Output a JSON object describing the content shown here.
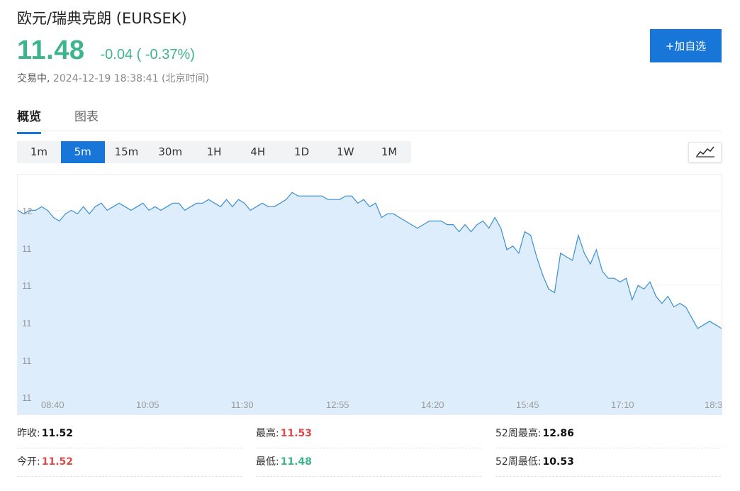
{
  "header": {
    "title": "欧元/瑞典克朗 (EURSEK)",
    "price": "11.48",
    "change": "-0.04 ( -0.37%)",
    "status": "交易中,",
    "timestamp": "2024-12-19 18:38:41 (北京时间)",
    "add_button": "+加自选"
  },
  "tabs": [
    {
      "label": "概览",
      "active": true
    },
    {
      "label": "图表",
      "active": false
    }
  ],
  "periods": [
    {
      "label": "1m",
      "active": false
    },
    {
      "label": "5m",
      "active": true
    },
    {
      "label": "15m",
      "active": false
    },
    {
      "label": "30m",
      "active": false
    },
    {
      "label": "1H",
      "active": false
    },
    {
      "label": "4H",
      "active": false
    },
    {
      "label": "1D",
      "active": false
    },
    {
      "label": "1W",
      "active": false
    },
    {
      "label": "1M",
      "active": false
    }
  ],
  "chart_type_icon": "line-chart-icon",
  "colors": {
    "up_green": "#3db48b",
    "down_red": "#e04a4a",
    "accent_blue": "#1876d8",
    "area_fill": "#deedfb",
    "line": "#3b8fd2"
  },
  "chart_data": {
    "type": "area",
    "x_tick_labels": [
      "08:40",
      "10:05",
      "11:30",
      "12:55",
      "14:20",
      "15:45",
      "17:10",
      "18:3"
    ],
    "y_tick_labels": [
      "12",
      "11",
      "11",
      "11",
      "11",
      "11"
    ],
    "ylim": [
      11.47,
      11.535
    ],
    "grid": "horizontal",
    "values": [
      11.527,
      11.526,
      11.527,
      11.527,
      11.528,
      11.527,
      11.525,
      11.524,
      11.526,
      11.527,
      11.526,
      11.528,
      11.526,
      11.528,
      11.529,
      11.527,
      11.528,
      11.529,
      11.528,
      11.527,
      11.528,
      11.529,
      11.527,
      11.528,
      11.527,
      11.528,
      11.529,
      11.529,
      11.527,
      11.528,
      11.529,
      11.529,
      11.53,
      11.529,
      11.528,
      11.53,
      11.528,
      11.53,
      11.529,
      11.527,
      11.528,
      11.529,
      11.528,
      11.528,
      11.529,
      11.53,
      11.532,
      11.531,
      11.531,
      11.531,
      11.531,
      11.531,
      11.53,
      11.53,
      11.53,
      11.531,
      11.531,
      11.529,
      11.53,
      11.528,
      11.529,
      11.525,
      11.526,
      11.526,
      11.525,
      11.524,
      11.523,
      11.522,
      11.523,
      11.524,
      11.524,
      11.524,
      11.523,
      11.523,
      11.521,
      11.523,
      11.521,
      11.523,
      11.524,
      11.522,
      11.525,
      11.522,
      11.516,
      11.517,
      11.515,
      11.521,
      11.52,
      11.514,
      11.509,
      11.505,
      11.504,
      11.515,
      11.514,
      11.513,
      11.52,
      11.515,
      11.512,
      11.516,
      11.51,
      11.508,
      11.508,
      11.507,
      11.508,
      11.502,
      11.506,
      11.505,
      11.507,
      11.503,
      11.501,
      11.503,
      11.5,
      11.501,
      11.5,
      11.497,
      11.494,
      11.495,
      11.496,
      11.495,
      11.494
    ]
  },
  "stats": {
    "prev_close": {
      "label": "昨收:",
      "value": "11.52"
    },
    "open": {
      "label": "今开:",
      "value": "11.52"
    },
    "high": {
      "label": "最高:",
      "value": "11.53"
    },
    "low": {
      "label": "最低:",
      "value": "11.48"
    },
    "week52_high": {
      "label": "52周最高:",
      "value": "12.86"
    },
    "week52_low": {
      "label": "52周最低:",
      "value": "10.53"
    }
  }
}
